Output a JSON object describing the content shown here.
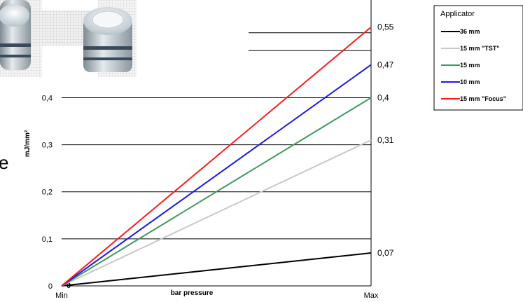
{
  "chart_data": {
    "type": "line",
    "x": [
      "Min",
      "Max"
    ],
    "ylabel": "mJ/mm²",
    "xlabel": "bar pressure",
    "ylim": [
      0,
      0.4
    ],
    "yticks": [
      "0",
      "0,1",
      "0,2",
      "0,3",
      "0,4"
    ],
    "origin_label": "0",
    "grid": true,
    "series": [
      {
        "name": "36 mm",
        "color": "#000000",
        "values": [
          0,
          0.07
        ],
        "end_label": "0,07"
      },
      {
        "name": "15 mm \"TST\"",
        "color": "#c8c8c8",
        "values": [
          0,
          0.31
        ],
        "end_label": "0,31"
      },
      {
        "name": "15 mm",
        "color": "#3f9a5c",
        "values": [
          0,
          0.4
        ],
        "end_label": "0,4"
      },
      {
        "name": "10 mm",
        "color": "#1a1ae6",
        "values": [
          0,
          0.47
        ],
        "end_label": "0,47"
      },
      {
        "name": "15 mm \"Focus\"",
        "color": "#ff1a1a",
        "values": [
          0,
          0.55
        ],
        "end_label": "0,55"
      }
    ],
    "legend": {
      "title": "Applicator",
      "position": "top-right"
    }
  },
  "fragment_text": "e"
}
